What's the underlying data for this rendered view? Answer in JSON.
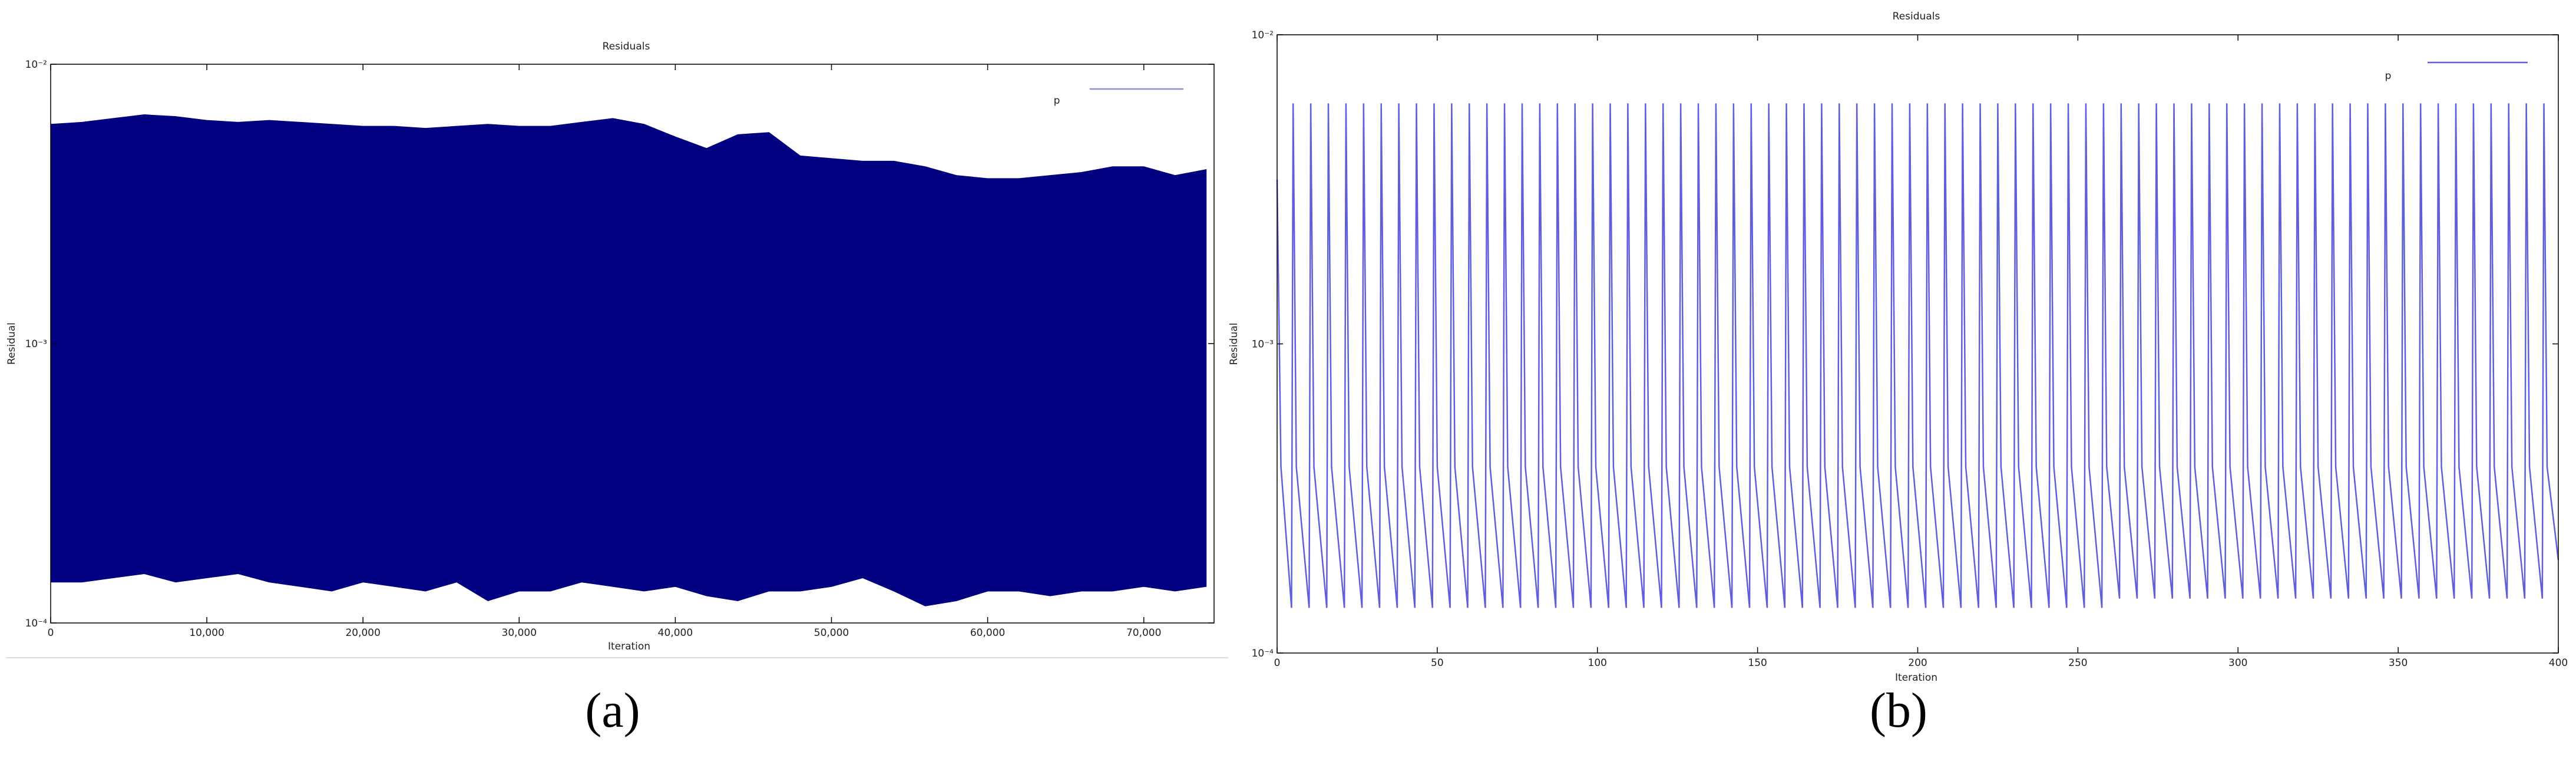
{
  "chart_data": [
    {
      "type": "area",
      "title": "Residuals",
      "caption": "(a)",
      "x_label": "Iteration",
      "y_label": "Residual",
      "yscale": "log",
      "xlim": [
        0,
        74500
      ],
      "ylim": [
        0.0001,
        0.01
      ],
      "xticks": [
        0,
        {
          "value": 10000,
          "label": "10,000"
        },
        {
          "value": 20000,
          "label": "20,000"
        },
        {
          "value": 30000,
          "label": "30,000"
        },
        {
          "value": 40000,
          "label": "40,000"
        },
        {
          "value": 50000,
          "label": "50,000"
        },
        {
          "value": 60000,
          "label": "60,000"
        },
        {
          "value": 70000,
          "label": "70,000"
        }
      ],
      "yticks": [
        {
          "value": 0.0001,
          "label": "10⁻⁴"
        },
        {
          "value": 0.001,
          "label": "10⁻³"
        },
        {
          "value": 0.01,
          "label": "10⁻²"
        }
      ],
      "legend": "upper right",
      "x": [
        0,
        2000,
        4000,
        6000,
        8000,
        10000,
        12000,
        14000,
        16000,
        18000,
        20000,
        22000,
        24000,
        26000,
        28000,
        30000,
        32000,
        34000,
        36000,
        38000,
        40000,
        42000,
        44000,
        46000,
        48000,
        50000,
        52000,
        54000,
        56000,
        58000,
        60000,
        62000,
        64000,
        66000,
        68000,
        70000,
        72000,
        74000
      ],
      "series": [
        {
          "name": "p",
          "color": "#000080",
          "legend_color": "#8a8fc8",
          "values": [
            0.0061,
            0.0062,
            0.0064,
            0.0066,
            0.0065,
            0.0063,
            0.0062,
            0.0063,
            0.0062,
            0.0061,
            0.006,
            0.006,
            0.0059,
            0.006,
            0.0061,
            0.006,
            0.006,
            0.0062,
            0.0064,
            0.0061,
            0.0055,
            0.005,
            0.0056,
            0.0057,
            0.0047,
            0.0046,
            0.0045,
            0.0045,
            0.0043,
            0.004,
            0.0039,
            0.0039,
            0.004,
            0.0041,
            0.0043,
            0.0043,
            0.004,
            0.0042
          ],
          "low_values": [
            0.00014,
            0.00014,
            0.000145,
            0.00015,
            0.00014,
            0.000145,
            0.00015,
            0.00014,
            0.000135,
            0.00013,
            0.00014,
            0.000135,
            0.00013,
            0.00014,
            0.00012,
            0.00013,
            0.00013,
            0.00014,
            0.000135,
            0.00013,
            0.000135,
            0.000125,
            0.00012,
            0.00013,
            0.00013,
            0.000135,
            0.000145,
            0.00013,
            0.000115,
            0.00012,
            0.00013,
            0.00013,
            0.000125,
            0.00013,
            0.00013,
            0.000135,
            0.00013,
            0.000135
          ]
        }
      ]
    },
    {
      "type": "line",
      "title": "Residuals",
      "caption": "(b)",
      "x_label": "Iteration",
      "y_label": "Residual",
      "yscale": "log",
      "xlim": [
        0,
        400
      ],
      "ylim": [
        0.0001,
        0.01
      ],
      "xticks": [
        0,
        50,
        100,
        150,
        200,
        250,
        300,
        350,
        400
      ],
      "yticks": [
        {
          "value": 0.0001,
          "label": "10⁻⁴"
        },
        {
          "value": 0.001,
          "label": "10⁻³"
        },
        {
          "value": 0.01,
          "label": "10⁻²"
        }
      ],
      "legend": "upper right",
      "x": [
        0,
        1.2,
        4.5,
        5,
        6,
        10,
        10.5,
        11.5,
        15.5,
        16,
        17,
        21,
        21.5,
        22.5,
        26.5,
        27,
        28,
        32,
        32.5,
        33.5,
        37.5,
        38,
        39,
        43,
        43.5,
        44.5,
        48.5,
        49,
        50,
        54,
        54.5,
        55.5,
        59.5,
        60,
        61,
        65,
        65.5,
        66.5,
        70.5,
        71,
        72,
        76,
        76.5,
        77.5,
        81.5,
        82,
        83,
        87,
        87.5,
        88.5,
        92.5,
        93,
        94,
        98,
        98.5,
        99.5,
        103.5,
        104,
        105,
        109,
        109.5,
        110.5,
        114.5,
        115,
        116,
        120,
        120.5,
        121.5,
        125.5,
        126,
        127,
        131,
        131.5,
        132.5,
        136.5,
        137,
        138,
        142,
        142.5,
        143.5,
        147.5,
        148,
        149,
        153,
        153.5,
        154.5,
        158.5,
        159,
        160,
        164,
        164.5,
        165.5,
        169.5,
        170,
        171,
        175,
        175.5,
        176.5,
        180.5,
        181,
        182,
        186,
        186.5,
        187.5,
        191.5,
        192,
        193,
        197,
        197.5,
        198.5,
        202.5,
        203,
        204,
        208,
        208.5,
        209.5,
        213.5,
        214,
        215,
        219,
        219.5,
        220.5,
        224.5,
        225,
        226,
        230,
        230.5,
        231.5,
        235.5,
        236,
        237,
        241,
        241.5,
        242.5,
        246.5,
        247,
        248,
        252,
        252.5,
        253.5,
        257.5,
        258,
        259,
        263,
        263.5,
        264.5,
        268.5,
        269,
        270,
        274,
        274.5,
        275.5,
        279.5,
        280,
        281,
        285,
        285.5,
        286.5,
        290.5,
        291,
        292,
        296,
        296.5,
        297.5,
        301.5,
        302,
        303,
        307,
        307.5,
        308.5,
        312.5,
        313,
        314,
        318,
        318.5,
        319.5,
        323.5,
        324,
        325,
        329,
        329.5,
        330.5,
        334.5,
        335,
        336,
        340,
        340.5,
        341.5,
        345.5,
        346,
        347,
        351,
        351.5,
        352.5,
        356.5,
        357,
        358,
        362,
        362.5,
        363.5,
        367.5,
        368,
        369,
        373,
        373.5,
        374.5,
        378.5,
        379,
        380,
        384,
        384.5,
        385.5,
        389.5,
        390,
        391,
        395,
        395.5,
        396.5,
        400
      ],
      "series": [
        {
          "name": "p",
          "color": "#5f5fdc",
          "values": [
            0.0034,
            0.0004,
            0.00014,
            0.006,
            0.0004,
            0.00014,
            0.006,
            0.0004,
            0.00014,
            0.006,
            0.0004,
            0.00014,
            0.006,
            0.0004,
            0.00014,
            0.006,
            0.0004,
            0.00014,
            0.006,
            0.0004,
            0.00014,
            0.006,
            0.0004,
            0.00014,
            0.006,
            0.0004,
            0.00014,
            0.006,
            0.0004,
            0.00014,
            0.006,
            0.0004,
            0.00014,
            0.006,
            0.0004,
            0.00014,
            0.006,
            0.0004,
            0.00014,
            0.006,
            0.0004,
            0.00014,
            0.006,
            0.0004,
            0.00014,
            0.006,
            0.0004,
            0.00014,
            0.006,
            0.0004,
            0.00014,
            0.006,
            0.0004,
            0.00014,
            0.006,
            0.0004,
            0.00014,
            0.006,
            0.0004,
            0.00014,
            0.006,
            0.0004,
            0.00014,
            0.006,
            0.0004,
            0.00014,
            0.006,
            0.0004,
            0.00014,
            0.006,
            0.0004,
            0.00014,
            0.006,
            0.0004,
            0.00014,
            0.006,
            0.0004,
            0.00014,
            0.006,
            0.0004,
            0.00014,
            0.006,
            0.0004,
            0.00014,
            0.006,
            0.0004,
            0.00014,
            0.006,
            0.0004,
            0.00014,
            0.006,
            0.0004,
            0.00014,
            0.006,
            0.0004,
            0.00014,
            0.006,
            0.0004,
            0.00014,
            0.006,
            0.0004,
            0.00014,
            0.006,
            0.0004,
            0.00014,
            0.006,
            0.0004,
            0.00014,
            0.006,
            0.0004,
            0.00014,
            0.006,
            0.0004,
            0.00014,
            0.006,
            0.0004,
            0.00014,
            0.006,
            0.0004,
            0.00014,
            0.006,
            0.0004,
            0.00014,
            0.006,
            0.0004,
            0.00014,
            0.006,
            0.0004,
            0.00014,
            0.006,
            0.0004,
            0.00014,
            0.006,
            0.0004,
            0.00014,
            0.006,
            0.0004,
            0.00014,
            0.006,
            0.0004,
            0.00014,
            0.006,
            0.0004,
            0.00015,
            0.006,
            0.0004,
            0.00015,
            0.006,
            0.0004,
            0.00015,
            0.006,
            0.0004,
            0.00015,
            0.006,
            0.0004,
            0.00015,
            0.006,
            0.0004,
            0.00015,
            0.006,
            0.0004,
            0.00015,
            0.006,
            0.0004,
            0.00015,
            0.006,
            0.0004,
            0.00015,
            0.006,
            0.0004,
            0.00015,
            0.006,
            0.0004,
            0.00015,
            0.006,
            0.0004,
            0.00015,
            0.006,
            0.0004,
            0.00015,
            0.006,
            0.0004,
            0.00015,
            0.006,
            0.0004,
            0.00015,
            0.006,
            0.0004,
            0.00015,
            0.006,
            0.0004,
            0.00015,
            0.006,
            0.0004,
            0.00015,
            0.006,
            0.0004,
            0.00015,
            0.006,
            0.0004,
            0.00015,
            0.006,
            0.0004,
            0.00015,
            0.006,
            0.0004,
            0.00015,
            0.006,
            0.0004,
            0.00015,
            0.006,
            0.0004,
            0.00015,
            0.006,
            0.0004,
            0.00015,
            0.006,
            0.0004,
            0.0002
          ]
        }
      ]
    }
  ]
}
